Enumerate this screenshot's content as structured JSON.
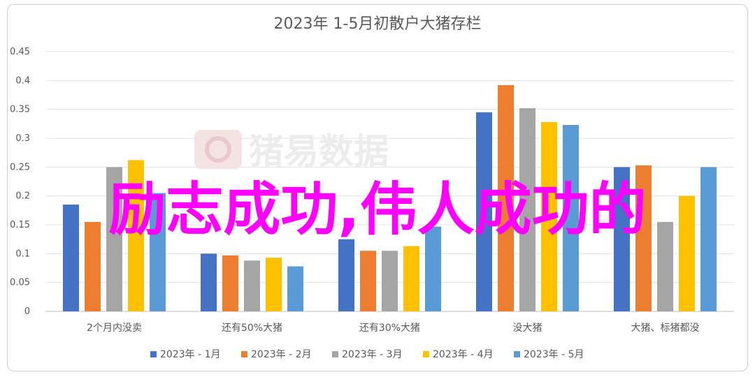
{
  "chart_data": {
    "type": "bar",
    "title": "2023年 1-5月初散户大猪存栏",
    "xlabel": "",
    "ylabel": "",
    "ylim": [
      0,
      0.45
    ],
    "yticks": [
      "0",
      "0.05",
      "0.1",
      "0.15",
      "0.2",
      "0.25",
      "0.3",
      "0.35",
      "0.4",
      "0.45"
    ],
    "grid": true,
    "legend_position": "bottom",
    "categories": [
      "2个月内没卖",
      "还有50%大猪",
      "还有30%大猪",
      "没大猪",
      "大猪、标猪都没"
    ],
    "series": [
      {
        "name": "2023年 - 1月",
        "color": "#4472c4",
        "values": [
          0.185,
          0.1,
          0.125,
          0.345,
          0.25
        ]
      },
      {
        "name": "2023年 - 2月",
        "color": "#ed7d31",
        "values": [
          0.155,
          0.097,
          0.105,
          0.392,
          0.253
        ]
      },
      {
        "name": "2023年 - 3月",
        "color": "#a5a5a5",
        "values": [
          0.25,
          0.088,
          0.105,
          0.352,
          0.155
        ]
      },
      {
        "name": "2023年 - 4月",
        "color": "#ffc000",
        "values": [
          0.262,
          0.093,
          0.113,
          0.328,
          0.2
        ]
      },
      {
        "name": "2023年 - 5月",
        "color": "#5b9bd5",
        "values": [
          0.205,
          0.078,
          0.147,
          0.323,
          0.25
        ]
      }
    ]
  },
  "watermark": "猪易数据",
  "overlay_text": "励志成功,伟人成功的"
}
